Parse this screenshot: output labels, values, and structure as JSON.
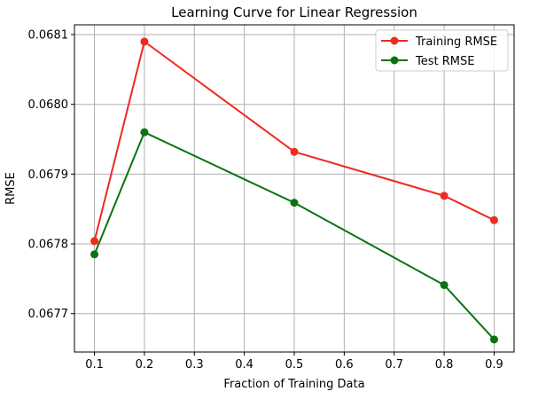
{
  "chart_data": {
    "type": "line",
    "title": "Learning Curve for Linear Regression",
    "xlabel": "Fraction of Training Data",
    "ylabel": "RMSE",
    "x": [
      0.1,
      0.2,
      0.5,
      0.8,
      0.9
    ],
    "xlim": [
      0.06,
      0.94
    ],
    "ylim": [
      0.067645,
      0.068114
    ],
    "xticks": [
      0.1,
      0.2,
      0.3,
      0.4,
      0.5,
      0.6,
      0.7,
      0.8,
      0.9
    ],
    "xtick_labels": [
      "0.1",
      "0.2",
      "0.3",
      "0.4",
      "0.5",
      "0.6",
      "0.7",
      "0.8",
      "0.9"
    ],
    "yticks": [
      0.0677,
      0.0678,
      0.0679,
      0.068,
      0.0681
    ],
    "ytick_labels": [
      "0.0677",
      "0.0678",
      "0.0679",
      "0.0680",
      "0.0681"
    ],
    "grid": true,
    "legend_position": "top-right",
    "series": [
      {
        "name": "Training RMSE",
        "color": "#ee2a1f",
        "marker": "circle",
        "values": [
          0.067804,
          0.06809,
          0.067932,
          0.067869,
          0.067834
        ]
      },
      {
        "name": "Test RMSE",
        "color": "#0a7312",
        "marker": "circle",
        "values": [
          0.067785,
          0.06796,
          0.067859,
          0.067741,
          0.067663
        ]
      }
    ]
  }
}
